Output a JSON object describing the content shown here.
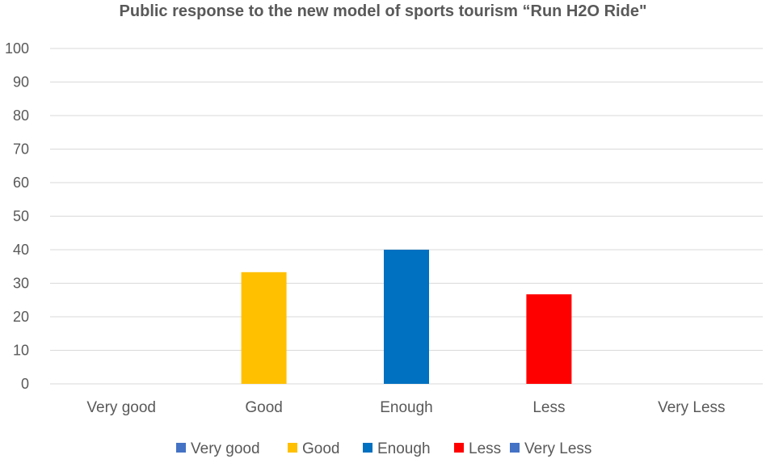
{
  "chart_data": {
    "type": "bar",
    "title": "Public response to the new model of sports tourism “Run H2O Ride\"",
    "categories": [
      "Very good",
      "Good",
      "Enough",
      "Less",
      "Very Less"
    ],
    "values": [
      0,
      33.3,
      40,
      26.7,
      0
    ],
    "colors": [
      "#4472c4",
      "#ffc000",
      "#0070c0",
      "#ff0000",
      "#4472c4"
    ],
    "ylim": [
      0,
      100
    ],
    "yticks": [
      "0",
      "10",
      "20",
      "30",
      "40",
      "50",
      "60",
      "70",
      "80",
      "90",
      "100"
    ],
    "grid": true,
    "legend_position": "bottom",
    "legend": [
      {
        "label": "Very good",
        "color": "#4472c4"
      },
      {
        "label": "Good",
        "color": "#ffc000"
      },
      {
        "label": "Enough",
        "color": "#0070c0"
      },
      {
        "label": "Less",
        "color": "#ff0000"
      },
      {
        "label": "Very Less",
        "color": "#4472c4"
      }
    ]
  }
}
